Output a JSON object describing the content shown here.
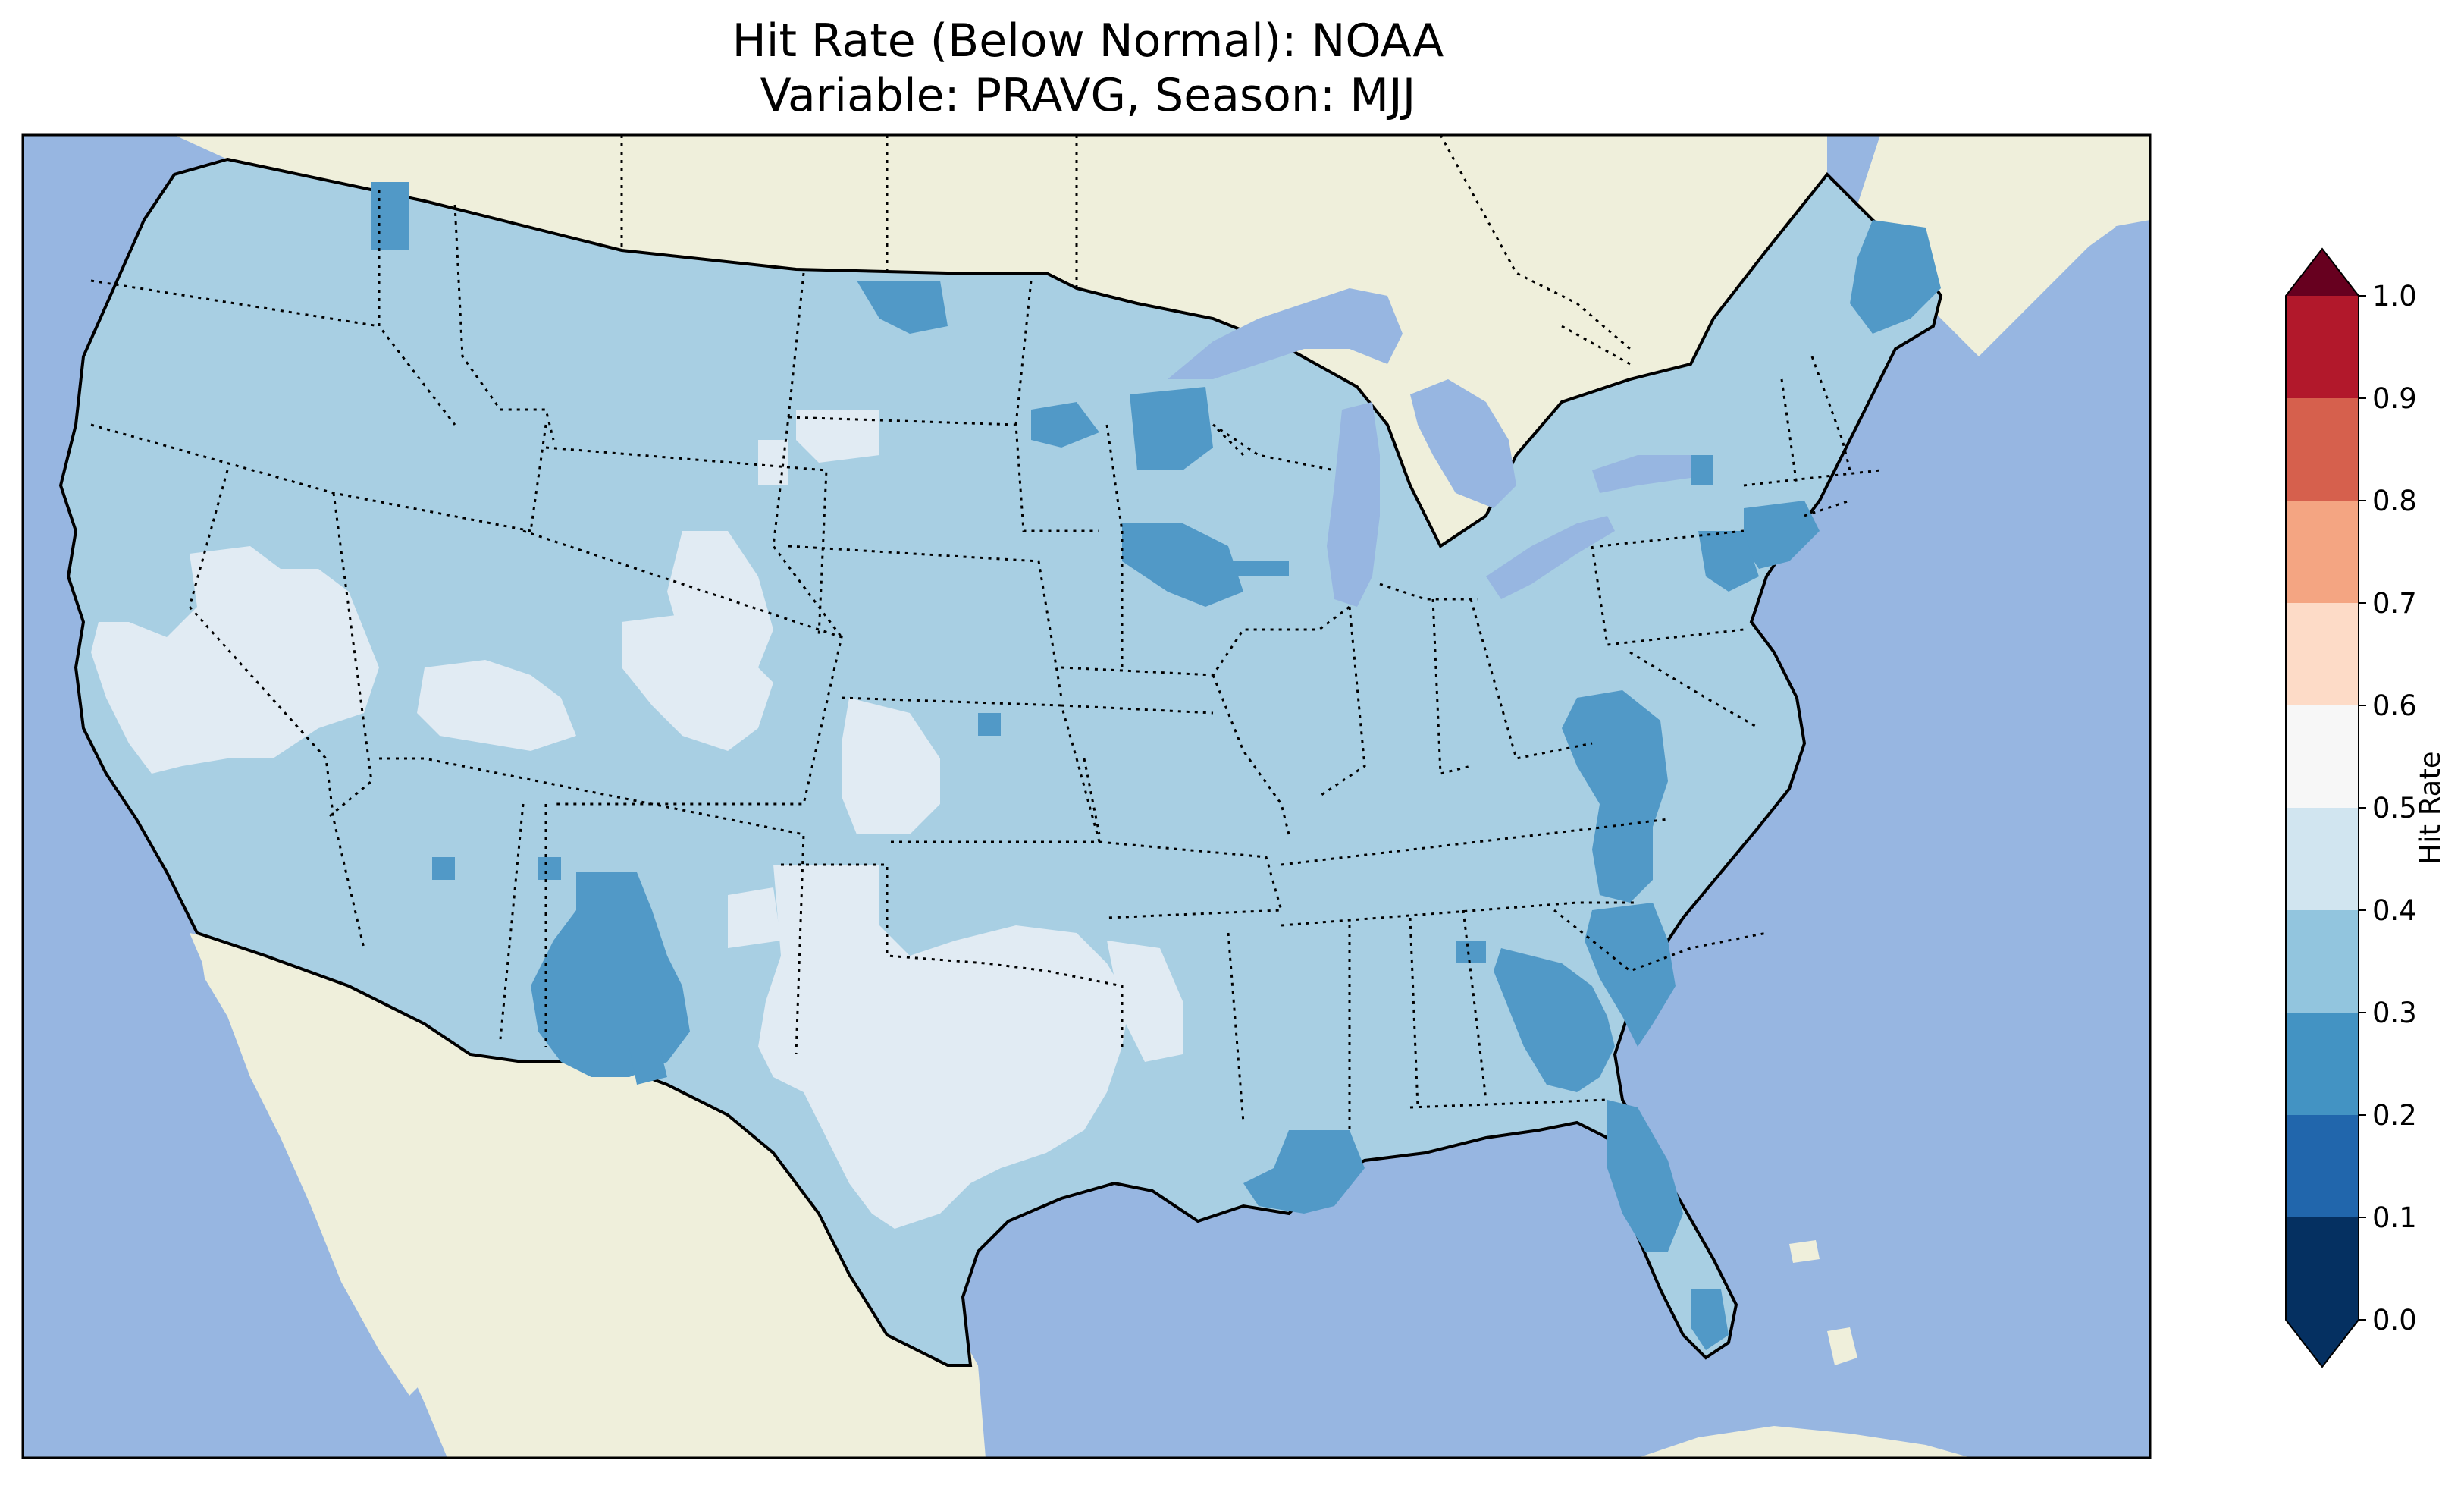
{
  "title": {
    "line1": "Hit Rate (Below Normal): NOAA",
    "line2": "Variable: PRAVG, Season: MJJ"
  },
  "map": {
    "ocean_color": "#97b6e1",
    "land_color": "#efefdb",
    "region": "Contiguous United States"
  },
  "colorbar": {
    "label": "Hit Rate",
    "ticks": [
      "0.0",
      "0.1",
      "0.2",
      "0.3",
      "0.4",
      "0.5",
      "0.6",
      "0.7",
      "0.8",
      "0.9",
      "1.0"
    ],
    "colors": [
      "#053061",
      "#2166ac",
      "#4393c3",
      "#92c5de",
      "#d1e5f0",
      "#f7f7f7",
      "#fddbc7",
      "#f4a582",
      "#d6604d",
      "#b2182b",
      "#67001f"
    ],
    "under_color": "#053061",
    "over_color": "#67001f"
  },
  "legend_classes": {
    "0.2-0.3": "#5199c7",
    "0.3-0.4": "#a8cfe3",
    "0.4-0.5": "#e1ebf3"
  }
}
